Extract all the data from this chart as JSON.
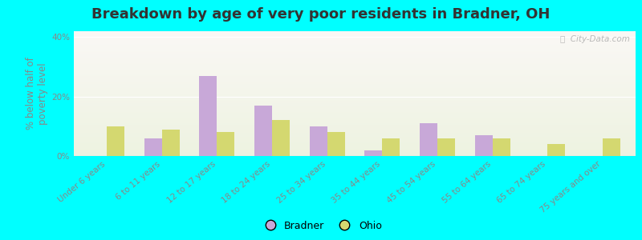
{
  "title": "Breakdown by age of very poor residents in Bradner, OH",
  "ylabel": "% below half of\npoverty level",
  "categories": [
    "Under 6 years",
    "6 to 11 years",
    "12 to 17 years",
    "18 to 24 years",
    "25 to 34 years",
    "35 to 44 years",
    "45 to 54 years",
    "55 to 64 years",
    "65 to 74 years",
    "75 years and over"
  ],
  "bradner_values": [
    0,
    6,
    27,
    17,
    10,
    2,
    11,
    7,
    0,
    0
  ],
  "ohio_values": [
    10,
    9,
    8,
    12,
    8,
    6,
    6,
    6,
    4,
    6
  ],
  "bradner_color": "#c8a8d8",
  "ohio_color": "#d4d870",
  "ylim": [
    0,
    42
  ],
  "yticks": [
    0,
    20,
    40
  ],
  "ytick_labels": [
    "0%",
    "20%",
    "40%"
  ],
  "outer_background": "#00ffff",
  "bar_width": 0.32,
  "title_fontsize": 13,
  "axis_label_fontsize": 8.5,
  "tick_fontsize": 7.5,
  "watermark_text": "ⓘ  City-Data.com"
}
